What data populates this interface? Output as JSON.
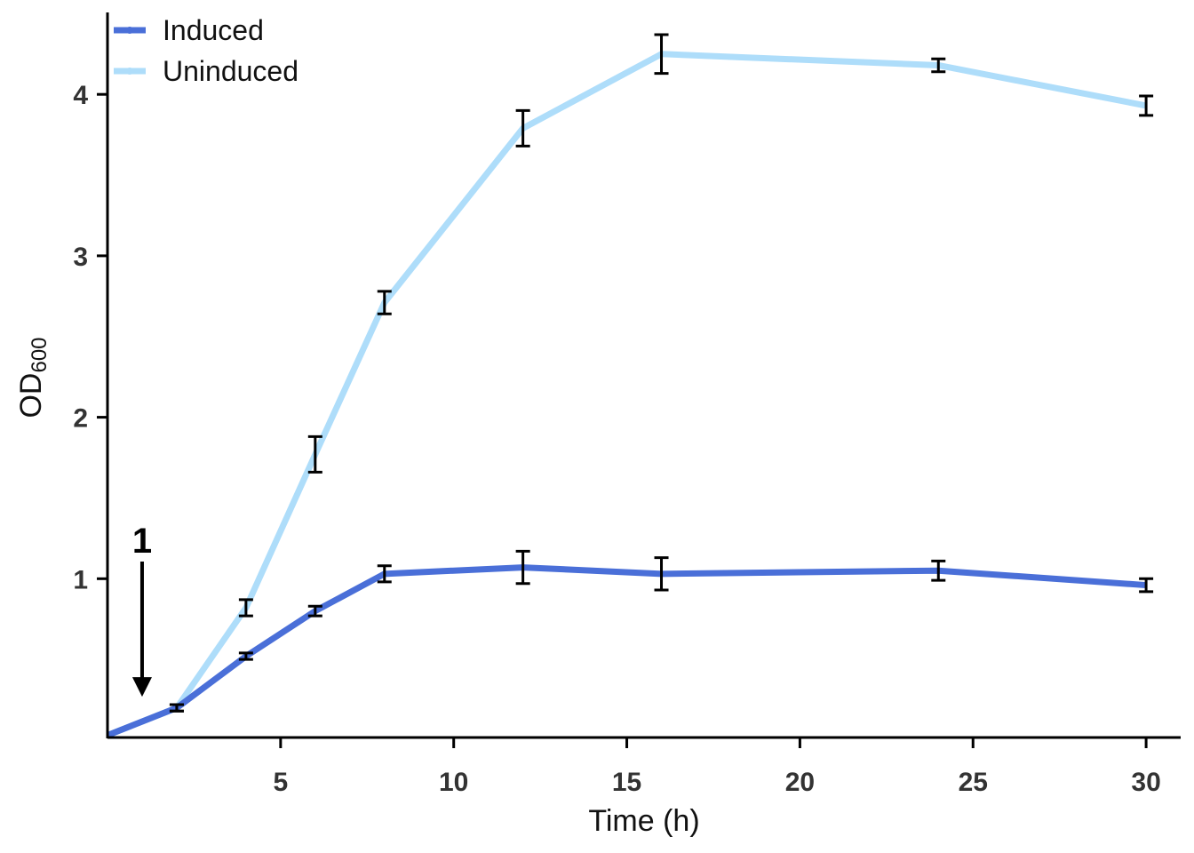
{
  "chart_data": {
    "type": "line",
    "title": "",
    "xlabel": "Time (h)",
    "ylabel_main": "OD",
    "ylabel_sub": "600",
    "xlim": [
      0,
      31
    ],
    "ylim": [
      0,
      4.45
    ],
    "xticks": [
      5,
      10,
      15,
      20,
      25,
      30
    ],
    "yticks": [
      1,
      2,
      3,
      4
    ],
    "legend_position": "top-left",
    "annotation": {
      "text": "1",
      "x": 1,
      "arrow_from": 1.0,
      "arrow_to": 0.28
    },
    "series": [
      {
        "name": "Induced",
        "color": "#4a6fd8",
        "x": [
          0,
          2,
          4,
          6,
          8,
          12,
          16,
          24,
          30
        ],
        "y": [
          0.03,
          0.2,
          0.52,
          0.8,
          1.03,
          1.07,
          1.03,
          1.05,
          0.96
        ],
        "err": [
          null,
          0.02,
          0.02,
          0.03,
          0.05,
          0.1,
          0.1,
          0.06,
          0.04
        ]
      },
      {
        "name": "Uninduced",
        "color": "#aeddfa",
        "x": [
          0,
          2,
          4,
          6,
          8,
          12,
          16,
          24,
          30
        ],
        "y": [
          0.03,
          0.2,
          0.82,
          1.77,
          2.71,
          3.79,
          4.25,
          4.18,
          3.93
        ],
        "err": [
          null,
          0.02,
          0.05,
          0.11,
          0.07,
          0.11,
          0.12,
          0.04,
          0.06
        ]
      }
    ]
  }
}
